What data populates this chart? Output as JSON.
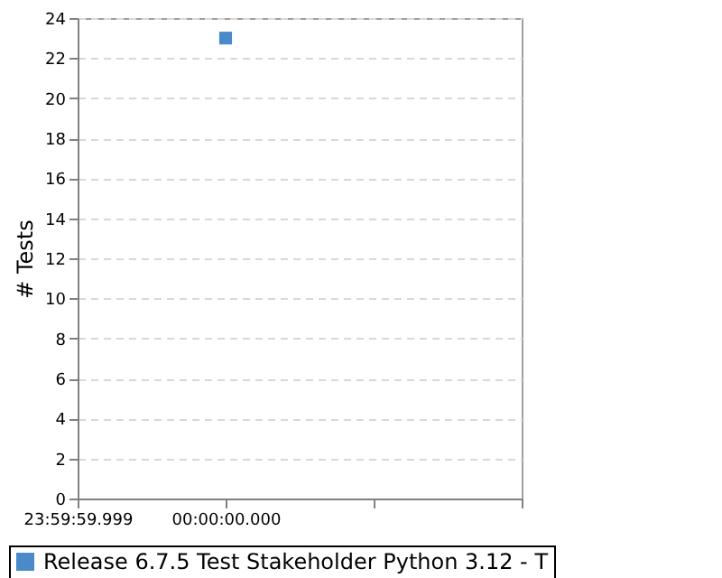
{
  "chart_data": {
    "type": "scatter",
    "ylabel": "# Tests",
    "categories": [
      "23:59:59.999",
      "00:00:00.000",
      null,
      null
    ],
    "series": [
      {
        "name": "Release 6.7.5 Test Stakeholder Python 3.12 - T",
        "color": "#4a8ac8",
        "values": [
          null,
          23,
          null,
          null
        ]
      }
    ],
    "ylim": [
      0,
      24
    ],
    "yticks": [
      0,
      2,
      4,
      6,
      8,
      10,
      12,
      14,
      16,
      18,
      20,
      22,
      24
    ],
    "grid": "y",
    "marker": "square",
    "legend": "bottom"
  }
}
